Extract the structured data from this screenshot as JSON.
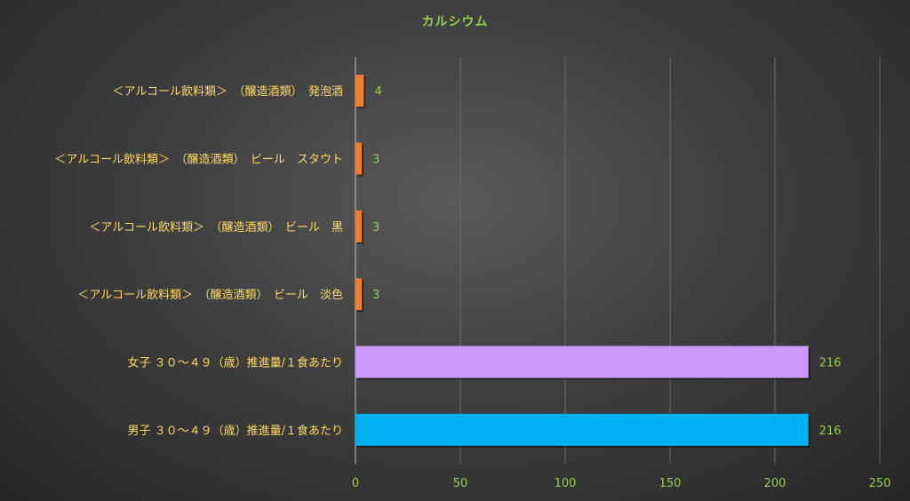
{
  "chart_data": {
    "type": "bar",
    "orientation": "horizontal",
    "title": "カルシウム",
    "categories": [
      "＜アルコール飲料類＞　（醸造酒類）　発泡酒",
      "＜アルコール飲料類＞　（醸造酒類）　ビール　スタウト",
      "＜アルコール飲料類＞　（醸造酒類）　ビール　黒",
      "＜アルコール飲料類＞　（醸造酒類）　ビール　淡色",
      "女子 ３０～４９（歳）推進量/１食あたり",
      "男子 ３０～４９（歳）推進量/１食あたり"
    ],
    "values": [
      4,
      3,
      3,
      3,
      216,
      216
    ],
    "data_labels": [
      "4",
      "3",
      "3",
      "3",
      "216",
      "216"
    ],
    "bar_colors": [
      "#ed7d31",
      "#ed7d31",
      "#ed7d31",
      "#ed7d31",
      "#cc99ff",
      "#00b0f0"
    ],
    "xlim": [
      0,
      250
    ],
    "xticks": [
      0,
      50,
      100,
      150,
      200,
      250
    ],
    "grid": "vertical",
    "legend": "none",
    "colors": {
      "title": "#92d050",
      "category_text": "#ffd966",
      "tick_text": "#92d050",
      "data_label_text": "#92d050",
      "gridline": "#6a6a6a",
      "axis": "#bfbfbf"
    }
  }
}
